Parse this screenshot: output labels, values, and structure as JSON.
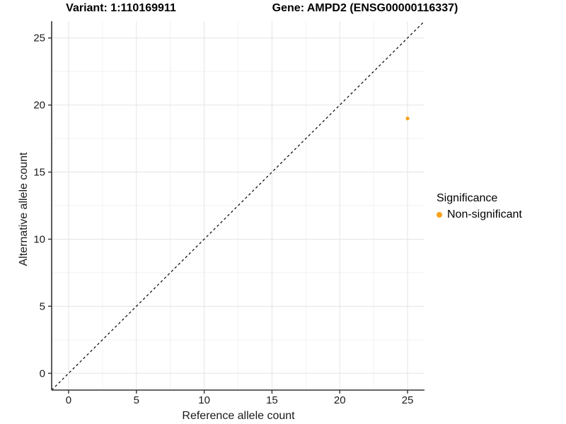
{
  "chart_data": {
    "type": "scatter",
    "title_left": "Variant: 1:110169911",
    "title_right": "Gene: AMPD2 (ENSG00000116337)",
    "xlabel": "Reference allele count",
    "ylabel": "Alternative allele count",
    "xlim": [
      -1.25,
      26.25
    ],
    "ylim": [
      -1.25,
      26.25
    ],
    "xticks": [
      0,
      5,
      10,
      15,
      20,
      25
    ],
    "yticks": [
      0,
      5,
      10,
      15,
      20,
      25
    ],
    "minor_xticks": [
      2.5,
      7.5,
      12.5,
      17.5,
      22.5
    ],
    "minor_yticks": [
      2.5,
      7.5,
      12.5,
      17.5,
      22.5
    ],
    "grid": "on",
    "points": [
      {
        "x": 25,
        "y": 19,
        "series": "Non-significant"
      }
    ],
    "reference_line": {
      "kind": "identity",
      "style": "dashed"
    },
    "legend": {
      "position": "right",
      "title": "Significance",
      "entries": [
        {
          "label": "Non-significant",
          "color": "#F9A11B"
        }
      ]
    },
    "colors": {
      "point": "#F9A11B",
      "axis": "#333333",
      "tick_label": "#1a1a1a",
      "grid_major": "#E4E4E4",
      "grid_minor": "#F2F2F2",
      "reference_line": "#000000",
      "background": "#FFFFFF"
    }
  }
}
